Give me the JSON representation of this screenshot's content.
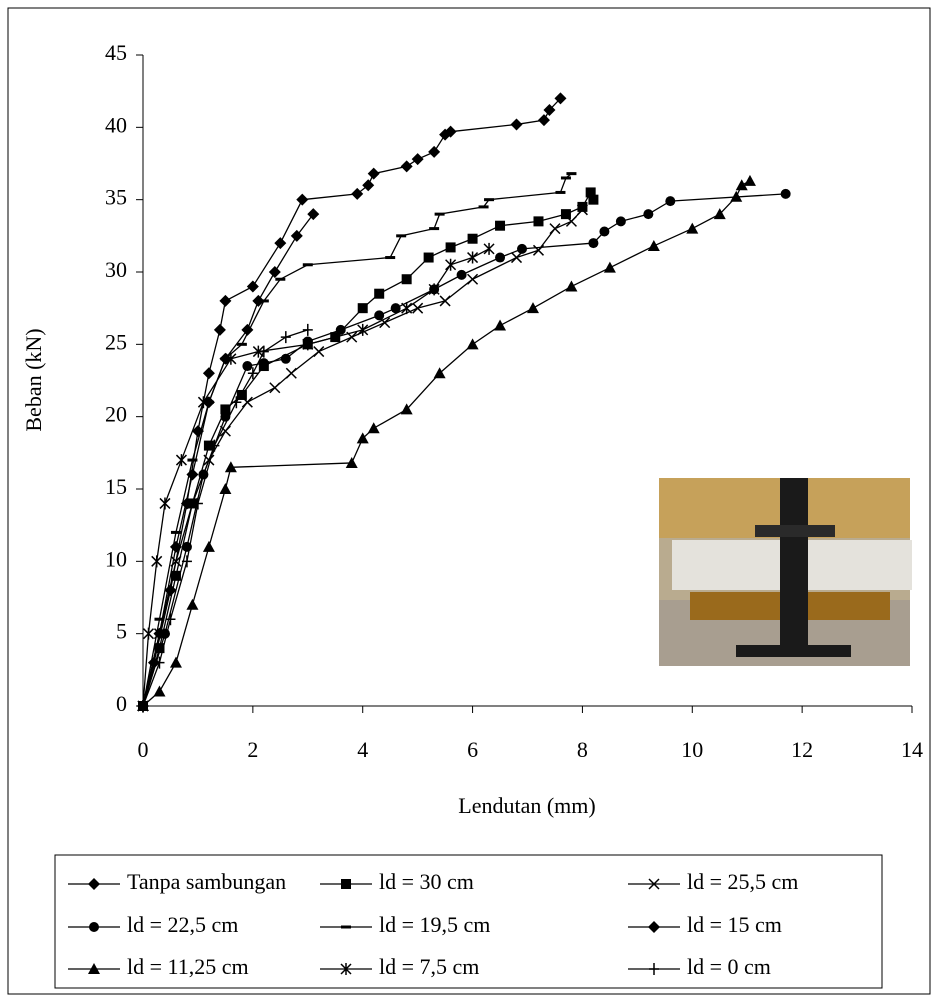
{
  "chart_data": {
    "type": "line",
    "xlabel": "Lendutan (mm)",
    "ylabel": "Beban (kN)",
    "xlim": [
      0,
      14
    ],
    "xticks": [
      0,
      2,
      4,
      6,
      8,
      10,
      12,
      14
    ],
    "ylim": [
      0,
      45
    ],
    "yticks": [
      0,
      5,
      10,
      15,
      20,
      25,
      30,
      35,
      40,
      45
    ],
    "grid": false,
    "series": [
      {
        "name": "Tanpa sambungan",
        "color": "#000000",
        "marker": "diamond",
        "x": [
          0,
          0.2,
          0.5,
          0.8,
          1.0,
          1.2,
          1.4,
          1.5,
          2.0,
          2.5,
          2.9,
          3.9,
          4.1,
          4.2,
          4.8,
          5.0,
          5.3,
          5.5,
          5.6,
          6.8,
          7.3,
          7.4,
          7.6
        ],
        "values": [
          0,
          3,
          8,
          14,
          19,
          23,
          26,
          28,
          29,
          32,
          35,
          35.4,
          36,
          36.8,
          37.3,
          37.8,
          38.3,
          39.5,
          39.7,
          40.2,
          40.5,
          41.2,
          42
        ]
      },
      {
        "name": "ld = 30 cm",
        "color": "#000000",
        "marker": "square",
        "x": [
          0,
          0.3,
          0.6,
          0.9,
          1.2,
          1.5,
          1.8,
          2.2,
          3.0,
          3.5,
          4.0,
          4.3,
          4.8,
          5.2,
          5.6,
          6.0,
          6.5,
          7.2,
          7.7,
          8.0,
          8.15,
          8.2
        ],
        "values": [
          0,
          4,
          9,
          14,
          18,
          20.5,
          21.5,
          23.5,
          25,
          25.5,
          27.5,
          28.5,
          29.5,
          31,
          31.7,
          32.3,
          33.2,
          33.5,
          34,
          34.5,
          35.5,
          35
        ]
      },
      {
        "name": "ld = 25,5 cm",
        "color": "#000000",
        "marker": "x",
        "x": [
          0,
          0.3,
          0.6,
          0.9,
          1.2,
          1.5,
          1.9,
          2.4,
          2.7,
          3.2,
          3.8,
          4.4,
          5.0,
          5.5,
          6.0,
          6.8,
          7.2,
          7.5,
          7.8,
          8.0
        ],
        "values": [
          0,
          5,
          10,
          14,
          17,
          19,
          21,
          22,
          23,
          24.5,
          25.5,
          26.5,
          27.5,
          28,
          29.5,
          31,
          31.5,
          33,
          33.5,
          34.3
        ]
      },
      {
        "name": "ld = 22,5 cm",
        "color": "#000000",
        "marker": "circle",
        "x": [
          0,
          0.4,
          0.8,
          1.1,
          1.5,
          1.9,
          2.2,
          2.6,
          3.0,
          3.6,
          4.3,
          4.6,
          5.3,
          5.8,
          6.5,
          6.9,
          8.2,
          8.4,
          8.7,
          9.2,
          9.6,
          11.7
        ],
        "values": [
          0,
          5,
          11,
          16,
          20,
          23.5,
          23.7,
          24,
          25.2,
          26,
          27,
          27.5,
          28.8,
          29.8,
          31,
          31.6,
          32,
          32.8,
          33.5,
          34,
          34.9,
          35.4
        ]
      },
      {
        "name": "ld = 19,5 cm",
        "color": "#000000",
        "marker": "dash",
        "x": [
          0,
          0.3,
          0.6,
          0.9,
          1.2,
          1.5,
          1.8,
          2.2,
          2.5,
          3.0,
          4.5,
          4.7,
          5.3,
          5.4,
          6.2,
          6.3,
          7.6,
          7.7,
          7.8
        ],
        "values": [
          0,
          6,
          12,
          17,
          21,
          24,
          25,
          28,
          29.5,
          30.5,
          31,
          32.5,
          33,
          34,
          34.5,
          35,
          35.5,
          36.5,
          36.8
        ]
      },
      {
        "name": "ld = 15 cm",
        "color": "#000000",
        "marker": "diamond",
        "x": [
          0,
          0.3,
          0.6,
          0.9,
          1.2,
          1.5,
          1.9,
          2.1,
          2.4,
          2.8,
          3.1
        ],
        "values": [
          0,
          5,
          11,
          16,
          21,
          24,
          26,
          28,
          30,
          32.5,
          34
        ]
      },
      {
        "name": "ld = 11,25 cm",
        "color": "#000000",
        "marker": "triangle",
        "x": [
          0,
          0.3,
          0.6,
          0.9,
          1.2,
          1.5,
          1.6,
          3.8,
          4.0,
          4.2,
          4.8,
          5.4,
          6.0,
          6.5,
          7.1,
          7.8,
          8.5,
          9.3,
          10.0,
          10.5,
          10.8,
          10.9,
          11.05
        ],
        "values": [
          0,
          1,
          3,
          7,
          11,
          15,
          16.5,
          16.8,
          18.5,
          19.2,
          20.5,
          23,
          25,
          26.3,
          27.5,
          29,
          30.3,
          31.8,
          33,
          34,
          35.2,
          36,
          36.3
        ]
      },
      {
        "name": "ld = 7,5 cm",
        "color": "#000000",
        "marker": "star",
        "x": [
          0,
          0.1,
          0.25,
          0.4,
          0.7,
          1.1,
          1.6,
          2.1,
          3.0,
          4.0,
          4.8,
          5.3,
          5.6,
          6.0,
          6.3
        ],
        "values": [
          0,
          5,
          10,
          14,
          17,
          21,
          24,
          24.5,
          25,
          26,
          27.5,
          28.8,
          30.5,
          31,
          31.6
        ]
      },
      {
        "name": "ld = 0 cm",
        "color": "#000000",
        "marker": "plus",
        "x": [
          0,
          0.3,
          0.5,
          0.8,
          1.0,
          1.3,
          1.7,
          2.0,
          2.2,
          2.6,
          3.0
        ],
        "values": [
          0,
          3,
          6,
          10,
          14,
          18,
          21,
          23,
          24.5,
          25.5,
          26
        ]
      }
    ]
  }
}
